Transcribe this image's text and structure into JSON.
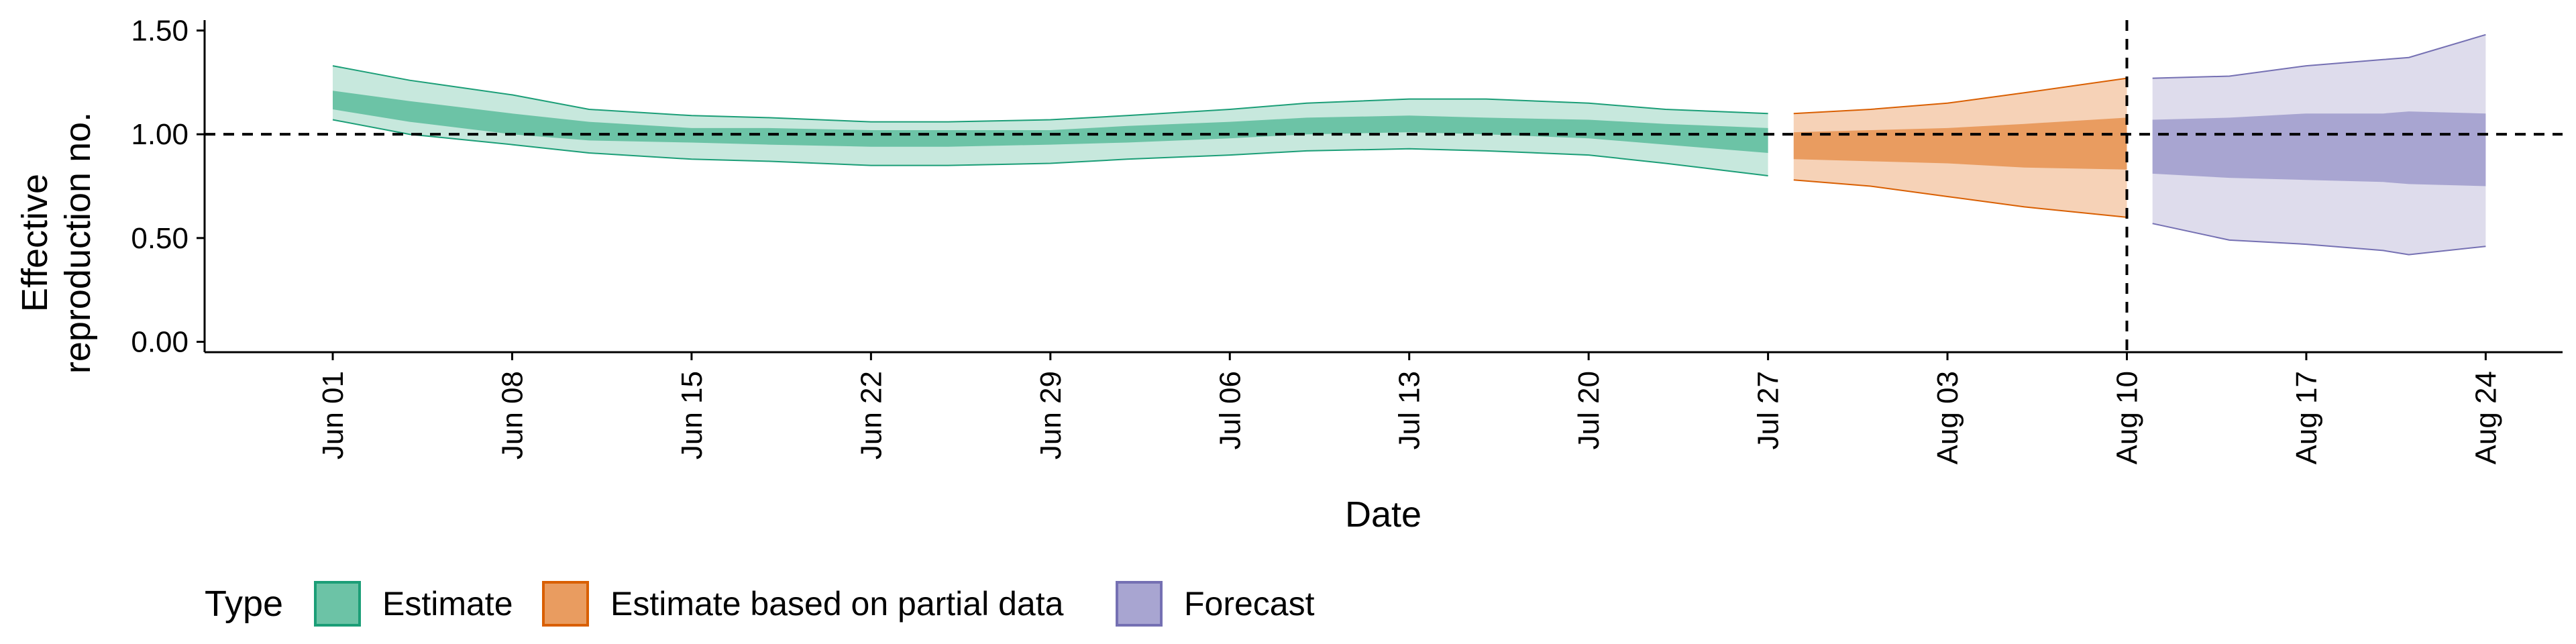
{
  "chart_data": {
    "type": "area",
    "xlabel": "Date",
    "ylabel_lines": [
      "Effective",
      "reproduction no."
    ],
    "ylim": [
      -0.05,
      1.55
    ],
    "y_ticks": [
      0.0,
      0.5,
      1.0,
      1.5
    ],
    "y_tick_labels": [
      "0.00",
      "0.50",
      "1.00",
      "1.50"
    ],
    "x_ticks": [
      "2020-06-01",
      "2020-06-08",
      "2020-06-15",
      "2020-06-22",
      "2020-06-29",
      "2020-07-06",
      "2020-07-13",
      "2020-07-20",
      "2020-07-27",
      "2020-08-03",
      "2020-08-10",
      "2020-08-17",
      "2020-08-24"
    ],
    "x_tick_labels": [
      "Jun 01",
      "Jun 08",
      "Jun 15",
      "Jun 22",
      "Jun 29",
      "Jul 06",
      "Jul 13",
      "Jul 20",
      "Jul 27",
      "Aug 03",
      "Aug 10",
      "Aug 17",
      "Aug 24"
    ],
    "xlim": [
      "2020-05-27",
      "2020-08-27"
    ],
    "reference_line_y": 1.0,
    "reference_line_x": "2020-08-10",
    "grid": false,
    "legend": {
      "title": "Type",
      "placement": "bottom-left",
      "entries": [
        "Estimate",
        "Estimate based on partial data",
        "Forecast"
      ]
    },
    "series": [
      {
        "name": "Estimate",
        "color": "#1b9e77",
        "fill_outer": "#c7e8dd",
        "fill_inner": "#6cc3a6",
        "points": [
          {
            "date": "2020-06-01",
            "lower90": 1.07,
            "upper90": 1.33,
            "lower50": 1.12,
            "upper50": 1.21
          },
          {
            "date": "2020-06-04",
            "lower90": 1.0,
            "upper90": 1.26,
            "lower50": 1.06,
            "upper50": 1.16
          },
          {
            "date": "2020-06-08",
            "lower90": 0.95,
            "upper90": 1.19,
            "lower50": 1.0,
            "upper50": 1.1
          },
          {
            "date": "2020-06-11",
            "lower90": 0.91,
            "upper90": 1.12,
            "lower50": 0.97,
            "upper50": 1.06
          },
          {
            "date": "2020-06-15",
            "lower90": 0.88,
            "upper90": 1.09,
            "lower50": 0.96,
            "upper50": 1.03
          },
          {
            "date": "2020-06-18",
            "lower90": 0.87,
            "upper90": 1.08,
            "lower50": 0.95,
            "upper50": 1.03
          },
          {
            "date": "2020-06-22",
            "lower90": 0.85,
            "upper90": 1.06,
            "lower50": 0.94,
            "upper50": 1.02
          },
          {
            "date": "2020-06-25",
            "lower90": 0.85,
            "upper90": 1.06,
            "lower50": 0.94,
            "upper50": 1.02
          },
          {
            "date": "2020-06-29",
            "lower90": 0.86,
            "upper90": 1.07,
            "lower50": 0.95,
            "upper50": 1.02
          },
          {
            "date": "2020-07-02",
            "lower90": 0.88,
            "upper90": 1.09,
            "lower50": 0.96,
            "upper50": 1.04
          },
          {
            "date": "2020-07-06",
            "lower90": 0.9,
            "upper90": 1.12,
            "lower50": 0.98,
            "upper50": 1.06
          },
          {
            "date": "2020-07-09",
            "lower90": 0.92,
            "upper90": 1.15,
            "lower50": 1.0,
            "upper50": 1.08
          },
          {
            "date": "2020-07-13",
            "lower90": 0.93,
            "upper90": 1.17,
            "lower50": 1.01,
            "upper50": 1.09
          },
          {
            "date": "2020-07-16",
            "lower90": 0.92,
            "upper90": 1.17,
            "lower50": 1.0,
            "upper50": 1.08
          },
          {
            "date": "2020-07-20",
            "lower90": 0.9,
            "upper90": 1.15,
            "lower50": 0.98,
            "upper50": 1.07
          },
          {
            "date": "2020-07-23",
            "lower90": 0.86,
            "upper90": 1.12,
            "lower50": 0.95,
            "upper50": 1.05
          },
          {
            "date": "2020-07-27",
            "lower90": 0.8,
            "upper90": 1.1,
            "lower50": 0.91,
            "upper50": 1.03
          }
        ]
      },
      {
        "name": "Estimate based on partial data",
        "color": "#d95f02",
        "fill_outer": "#f6d2b7",
        "fill_inner": "#e99c60",
        "points": [
          {
            "date": "2020-07-28",
            "lower90": 0.78,
            "upper90": 1.1,
            "lower50": 0.88,
            "upper50": 1.01
          },
          {
            "date": "2020-07-31",
            "lower90": 0.75,
            "upper90": 1.12,
            "lower50": 0.87,
            "upper50": 1.02
          },
          {
            "date": "2020-08-03",
            "lower90": 0.7,
            "upper90": 1.15,
            "lower50": 0.86,
            "upper50": 1.03
          },
          {
            "date": "2020-08-06",
            "lower90": 0.65,
            "upper90": 1.2,
            "lower50": 0.84,
            "upper50": 1.05
          },
          {
            "date": "2020-08-10",
            "lower90": 0.6,
            "upper90": 1.27,
            "lower50": 0.83,
            "upper50": 1.08
          }
        ]
      },
      {
        "name": "Forecast",
        "color": "#7570b3",
        "fill_outer": "#dedcec",
        "fill_inner": "#a8a5d1",
        "points": [
          {
            "date": "2020-08-11",
            "lower90": 0.57,
            "upper90": 1.27,
            "lower50": 0.81,
            "upper50": 1.07
          },
          {
            "date": "2020-08-14",
            "lower90": 0.49,
            "upper90": 1.28,
            "lower50": 0.79,
            "upper50": 1.08
          },
          {
            "date": "2020-08-17",
            "lower90": 0.47,
            "upper90": 1.33,
            "lower50": 0.78,
            "upper50": 1.1
          },
          {
            "date": "2020-08-20",
            "lower90": 0.44,
            "upper90": 1.36,
            "lower50": 0.77,
            "upper50": 1.1
          },
          {
            "date": "2020-08-21",
            "lower90": 0.42,
            "upper90": 1.37,
            "lower50": 0.76,
            "upper50": 1.11
          },
          {
            "date": "2020-08-24",
            "lower90": 0.46,
            "upper90": 1.48,
            "lower50": 0.75,
            "upper50": 1.1
          }
        ]
      }
    ]
  }
}
